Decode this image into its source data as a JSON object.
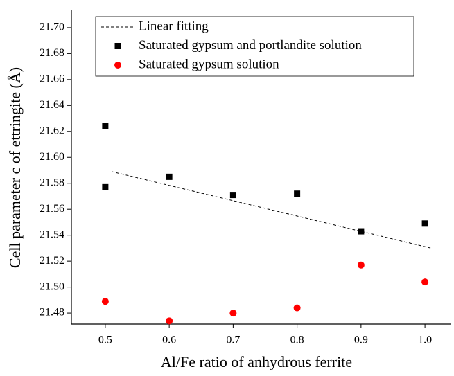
{
  "chart_data": {
    "type": "scatter",
    "xlabel": "Al/Fe ratio of anhydrous ferrite",
    "ylabel": "Cell parameter c of ettringite (Å)",
    "xlim": [
      0.447,
      1.04
    ],
    "ylim": [
      21.4715,
      21.7133
    ],
    "xticks": [
      {
        "value": 0.5,
        "label": "0.5"
      },
      {
        "value": 0.6,
        "label": "0.6"
      },
      {
        "value": 0.7,
        "label": "0.7"
      },
      {
        "value": 0.8,
        "label": "0.8"
      },
      {
        "value": 0.9,
        "label": "0.9"
      },
      {
        "value": 1.0,
        "label": "1.0"
      }
    ],
    "yticks": [
      {
        "value": 21.48,
        "label": "21.48"
      },
      {
        "value": 21.5,
        "label": "21.50"
      },
      {
        "value": 21.52,
        "label": "21.52"
      },
      {
        "value": 21.54,
        "label": "21.54"
      },
      {
        "value": 21.56,
        "label": "21.56"
      },
      {
        "value": 21.58,
        "label": "21.58"
      },
      {
        "value": 21.6,
        "label": "21.60"
      },
      {
        "value": 21.62,
        "label": "21.62"
      },
      {
        "value": 21.64,
        "label": "21.64"
      },
      {
        "value": 21.66,
        "label": "21.66"
      },
      {
        "value": 21.68,
        "label": "21.68"
      },
      {
        "value": 21.7,
        "label": "21.70"
      }
    ],
    "legend": "upper left",
    "series": [
      {
        "name": "Linear fitting",
        "color": "#000000",
        "kind": "line",
        "line_style": "dashed",
        "x": [
          0.51,
          1.01
        ],
        "values": [
          21.589,
          21.53
        ]
      },
      {
        "name": "Saturated gypsum and portlandite solution",
        "color": "#000000",
        "kind": "square",
        "x": [
          0.5,
          0.5,
          0.6,
          0.7,
          0.8,
          0.9,
          1.0
        ],
        "values": [
          21.624,
          21.577,
          21.585,
          21.571,
          21.572,
          21.543,
          21.549
        ]
      },
      {
        "name": "Saturated gypsum solution",
        "color": "#ff0000",
        "kind": "circle",
        "x": [
          0.5,
          0.6,
          0.7,
          0.8,
          0.9,
          1.0
        ],
        "values": [
          21.489,
          21.474,
          21.48,
          21.484,
          21.517,
          21.504
        ]
      }
    ]
  }
}
